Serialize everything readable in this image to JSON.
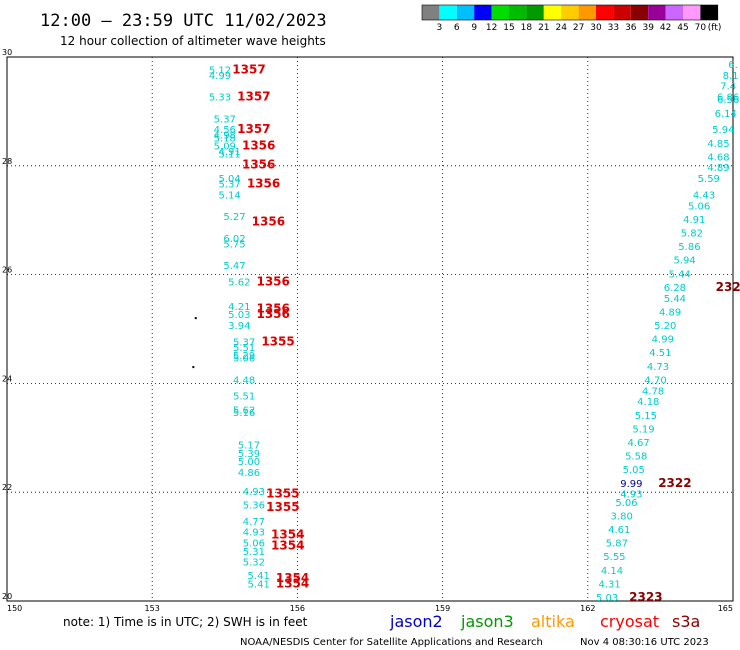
{
  "header": {
    "title": "12:00 – 23:59 UTC 11/02/2023",
    "subtitle": "12 hour collection of altimeter wave heights"
  },
  "colorbar": {
    "unit": "(ft)",
    "colors": [
      "#808080",
      "#00ffff",
      "#00bfff",
      "#0000ff",
      "#00dd00",
      "#00bb00",
      "#009900",
      "#ffff00",
      "#ffcc00",
      "#ff9900",
      "#ff0000",
      "#cc0000",
      "#880000",
      "#990099",
      "#cc66ff",
      "#ff99ff",
      "#000000"
    ],
    "labels": [
      "3",
      "6",
      "9",
      "12",
      "15",
      "18",
      "21",
      "24",
      "27",
      "30",
      "33",
      "36",
      "39",
      "42",
      "45",
      "70"
    ]
  },
  "footer": {
    "note": "note:  1) Time is in UTC;  2) SWH is in feet",
    "legend": [
      {
        "name": "jason2",
        "color": "#0000cc"
      },
      {
        "name": "jason3",
        "color": "#009900"
      },
      {
        "name": "altika",
        "color": "#ff9900"
      },
      {
        "name": "cryosat",
        "color": "#ff0000"
      },
      {
        "name": "s3a",
        "color": "#880000"
      }
    ],
    "credit": "NOAA/NESDIS Center for Satellite Applications and Research",
    "timestamp": "Nov  4 08:30:16 UTC 2023"
  },
  "chart_data": {
    "type": "scatter",
    "title": "12:00 – 23:59 UTC 11/02/2023",
    "subtitle": "12 hour collection of altimeter wave heights",
    "xlim": [
      150,
      165
    ],
    "ylim": [
      20,
      30
    ],
    "x_ticks": [
      "150",
      "153",
      "156",
      "159",
      "162",
      "165"
    ],
    "y_ticks": [
      "20",
      "22",
      "24",
      "26",
      "28",
      "30"
    ],
    "grid": true,
    "swh_color": "#00cccc",
    "pass_color": "#dd0000",
    "swh_points": [
      {
        "x": 154.4,
        "y": 29.7,
        "v": "5.12"
      },
      {
        "x": 154.4,
        "y": 29.6,
        "v": "4.99"
      },
      {
        "x": 154.4,
        "y": 29.2,
        "v": "5.33"
      },
      {
        "x": 154.5,
        "y": 28.8,
        "v": "5.37"
      },
      {
        "x": 154.5,
        "y": 28.6,
        "v": "4.56"
      },
      {
        "x": 154.5,
        "y": 28.5,
        "v": "4.98"
      },
      {
        "x": 154.5,
        "y": 28.45,
        "v": "5.18"
      },
      {
        "x": 154.5,
        "y": 28.3,
        "v": "5.09"
      },
      {
        "x": 154.6,
        "y": 28.2,
        "v": "4.91"
      },
      {
        "x": 154.6,
        "y": 28.15,
        "v": "5.11"
      },
      {
        "x": 154.6,
        "y": 27.7,
        "v": "5.04"
      },
      {
        "x": 154.6,
        "y": 27.6,
        "v": "5.37"
      },
      {
        "x": 154.6,
        "y": 27.4,
        "v": "5.14"
      },
      {
        "x": 154.7,
        "y": 27.0,
        "v": "5.27"
      },
      {
        "x": 154.7,
        "y": 26.6,
        "v": "6.02"
      },
      {
        "x": 154.7,
        "y": 26.5,
        "v": "5.75"
      },
      {
        "x": 154.7,
        "y": 26.1,
        "v": "5.47"
      },
      {
        "x": 154.8,
        "y": 25.8,
        "v": "5.62"
      },
      {
        "x": 154.8,
        "y": 25.35,
        "v": "4.21"
      },
      {
        "x": 154.8,
        "y": 25.2,
        "v": "5.03"
      },
      {
        "x": 154.8,
        "y": 25.0,
        "v": "3.94"
      },
      {
        "x": 154.9,
        "y": 24.7,
        "v": "5.37"
      },
      {
        "x": 154.9,
        "y": 24.6,
        "v": "5.51"
      },
      {
        "x": 154.9,
        "y": 24.45,
        "v": "5.29"
      },
      {
        "x": 154.9,
        "y": 24.4,
        "v": "5.06"
      },
      {
        "x": 154.9,
        "y": 24.0,
        "v": "4.48"
      },
      {
        "x": 154.9,
        "y": 23.7,
        "v": "5.51"
      },
      {
        "x": 154.9,
        "y": 23.45,
        "v": "5.62"
      },
      {
        "x": 154.9,
        "y": 23.4,
        "v": "5.16"
      },
      {
        "x": 155.0,
        "y": 22.8,
        "v": "5.17"
      },
      {
        "x": 155.0,
        "y": 22.65,
        "v": "5.39"
      },
      {
        "x": 155.0,
        "y": 22.5,
        "v": "5.00"
      },
      {
        "x": 155.0,
        "y": 22.3,
        "v": "4.86"
      },
      {
        "x": 155.1,
        "y": 21.95,
        "v": "4.93"
      },
      {
        "x": 155.1,
        "y": 21.7,
        "v": "5.36"
      },
      {
        "x": 155.1,
        "y": 21.4,
        "v": "4.77"
      },
      {
        "x": 155.1,
        "y": 21.2,
        "v": "4.93"
      },
      {
        "x": 155.1,
        "y": 21.0,
        "v": "5.06"
      },
      {
        "x": 155.1,
        "y": 20.85,
        "v": "5.31"
      },
      {
        "x": 155.1,
        "y": 20.65,
        "v": "5.32"
      },
      {
        "x": 155.2,
        "y": 20.4,
        "v": "5.41"
      },
      {
        "x": 155.2,
        "y": 20.25,
        "v": "5.41"
      },
      {
        "x": 165.0,
        "y": 29.8,
        "v": "6."
      },
      {
        "x": 164.95,
        "y": 29.6,
        "v": "8.1"
      },
      {
        "x": 164.9,
        "y": 29.4,
        "v": "7.4"
      },
      {
        "x": 164.9,
        "y": 29.2,
        "v": "6.86"
      },
      {
        "x": 164.9,
        "y": 29.15,
        "v": "6.56"
      },
      {
        "x": 164.85,
        "y": 28.9,
        "v": "6.14"
      },
      {
        "x": 164.8,
        "y": 28.6,
        "v": "5.94"
      },
      {
        "x": 164.7,
        "y": 28.35,
        "v": "4.85"
      },
      {
        "x": 164.7,
        "y": 28.1,
        "v": "4.68"
      },
      {
        "x": 164.7,
        "y": 27.9,
        "v": "4.89"
      },
      {
        "x": 164.5,
        "y": 27.7,
        "v": "5.59"
      },
      {
        "x": 164.4,
        "y": 27.4,
        "v": "4.43"
      },
      {
        "x": 164.3,
        "y": 27.2,
        "v": "5.06"
      },
      {
        "x": 164.2,
        "y": 26.95,
        "v": "4.91"
      },
      {
        "x": 164.15,
        "y": 26.7,
        "v": "5.82"
      },
      {
        "x": 164.1,
        "y": 26.45,
        "v": "5.86"
      },
      {
        "x": 164.0,
        "y": 26.2,
        "v": "5.94"
      },
      {
        "x": 163.9,
        "y": 25.95,
        "v": "5.44"
      },
      {
        "x": 163.8,
        "y": 25.7,
        "v": "6.28"
      },
      {
        "x": 163.8,
        "y": 25.5,
        "v": "5.44"
      },
      {
        "x": 163.7,
        "y": 25.25,
        "v": "4.89"
      },
      {
        "x": 163.6,
        "y": 25.0,
        "v": "5.20"
      },
      {
        "x": 163.55,
        "y": 24.75,
        "v": "4.99"
      },
      {
        "x": 163.5,
        "y": 24.5,
        "v": "4.51"
      },
      {
        "x": 163.45,
        "y": 24.25,
        "v": "4.73"
      },
      {
        "x": 163.4,
        "y": 24.0,
        "v": "4.70"
      },
      {
        "x": 163.35,
        "y": 23.8,
        "v": "4.78"
      },
      {
        "x": 163.25,
        "y": 23.6,
        "v": "4.18"
      },
      {
        "x": 163.2,
        "y": 23.35,
        "v": "5.15"
      },
      {
        "x": 163.15,
        "y": 23.1,
        "v": "5.19"
      },
      {
        "x": 163.05,
        "y": 22.85,
        "v": "4.67"
      },
      {
        "x": 163.0,
        "y": 22.6,
        "v": "5.58"
      },
      {
        "x": 162.95,
        "y": 22.35,
        "v": "5.05"
      },
      {
        "x": 162.9,
        "y": 21.9,
        "v": "4.93"
      },
      {
        "x": 162.8,
        "y": 21.75,
        "v": "5.06"
      },
      {
        "x": 162.7,
        "y": 21.5,
        "v": "3.80"
      },
      {
        "x": 162.65,
        "y": 21.25,
        "v": "4.61"
      },
      {
        "x": 162.6,
        "y": 21.0,
        "v": "5.87"
      },
      {
        "x": 162.55,
        "y": 20.75,
        "v": "5.55"
      },
      {
        "x": 162.5,
        "y": 20.5,
        "v": "4.14"
      },
      {
        "x": 162.45,
        "y": 20.25,
        "v": "4.31"
      },
      {
        "x": 162.4,
        "y": 20.0,
        "v": "5.03"
      }
    ],
    "highlight_points": [
      {
        "x": 162.9,
        "y": 22.1,
        "v": "9.99",
        "color": "#000099"
      }
    ],
    "pass_labels": [
      {
        "x": 155.0,
        "y": 29.7,
        "v": "1357",
        "color": "#dd0000"
      },
      {
        "x": 155.1,
        "y": 29.2,
        "v": "1357",
        "color": "#dd0000"
      },
      {
        "x": 155.1,
        "y": 28.6,
        "v": "1357",
        "color": "#dd0000"
      },
      {
        "x": 155.2,
        "y": 28.3,
        "v": "1356",
        "color": "#dd0000"
      },
      {
        "x": 155.2,
        "y": 27.95,
        "v": "1356",
        "color": "#dd0000"
      },
      {
        "x": 155.3,
        "y": 27.6,
        "v": "1356",
        "color": "#dd0000"
      },
      {
        "x": 155.4,
        "y": 26.9,
        "v": "1356",
        "color": "#dd0000"
      },
      {
        "x": 155.5,
        "y": 25.8,
        "v": "1356",
        "color": "#dd0000"
      },
      {
        "x": 155.5,
        "y": 25.3,
        "v": "1356",
        "color": "#dd0000"
      },
      {
        "x": 155.5,
        "y": 25.2,
        "v": "1356",
        "color": "#dd0000"
      },
      {
        "x": 155.6,
        "y": 24.7,
        "v": "1355",
        "color": "#dd0000"
      },
      {
        "x": 155.7,
        "y": 21.9,
        "v": "1355",
        "color": "#dd0000"
      },
      {
        "x": 155.7,
        "y": 21.65,
        "v": "1355",
        "color": "#dd0000"
      },
      {
        "x": 155.8,
        "y": 21.15,
        "v": "1354",
        "color": "#dd0000"
      },
      {
        "x": 155.8,
        "y": 20.95,
        "v": "1354",
        "color": "#dd0000"
      },
      {
        "x": 155.9,
        "y": 20.35,
        "v": "1354",
        "color": "#dd0000"
      },
      {
        "x": 155.9,
        "y": 20.25,
        "v": "1354",
        "color": "#dd0000"
      },
      {
        "x": 164.9,
        "y": 25.7,
        "v": "232",
        "color": "#880000"
      },
      {
        "x": 163.8,
        "y": 22.1,
        "v": "2322",
        "color": "#880000"
      },
      {
        "x": 163.2,
        "y": 20.0,
        "v": "2323",
        "color": "#880000"
      }
    ],
    "markers": [
      {
        "x": 153.9,
        "y": 25.2
      },
      {
        "x": 153.85,
        "y": 24.3
      }
    ]
  }
}
